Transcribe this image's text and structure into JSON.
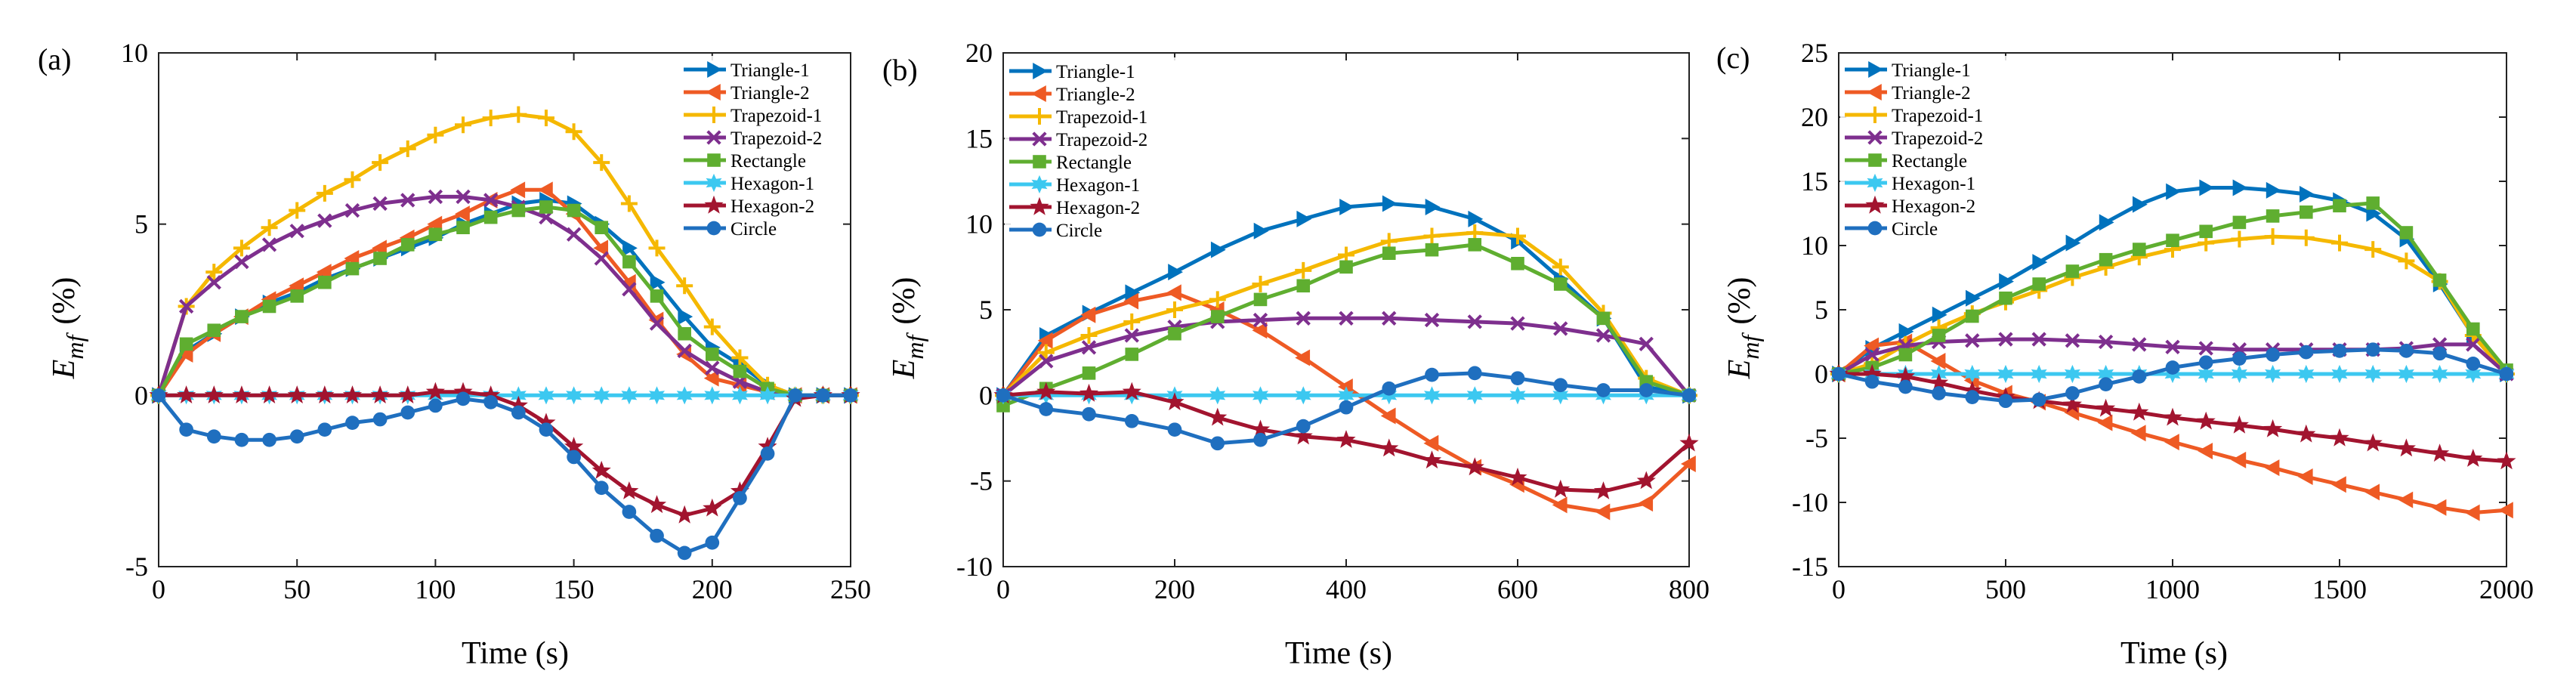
{
  "colors": {
    "Triangle-1": "#0072BD",
    "Triangle-2": "#EE5A24",
    "Trapezoid-1": "#F5B800",
    "Trapezoid-2": "#7E2F8E",
    "Rectangle": "#5FAE30",
    "Hexagon-1": "#3CC8F0",
    "Hexagon-2": "#A2142F",
    "Circle": "#1F6FBF"
  },
  "markers": {
    "Triangle-1": "triangle-right",
    "Triangle-2": "triangle-left",
    "Trapezoid-1": "plus",
    "Trapezoid-2": "x-mark",
    "Rectangle": "square",
    "Hexagon-1": "hexagram",
    "Hexagon-2": "pentagram",
    "Circle": "circle"
  },
  "chart_data": [
    {
      "type": "line",
      "panel_label": "(a)",
      "xlabel": "Time (s)",
      "ylabel_main": "E",
      "ylabel_sub": "mf",
      "ylabel_unit": "(%)",
      "xlim": [
        0,
        250
      ],
      "ylim": [
        -5,
        10
      ],
      "xticks": [
        "0",
        "50",
        "100",
        "150",
        "200",
        "250"
      ],
      "yticks": [
        "-5",
        "0",
        "5",
        "10"
      ],
      "legend": [
        "Triangle-1",
        "Triangle-2",
        "Trapezoid-1",
        "Trapezoid-2",
        "Rectangle",
        "Hexagon-1",
        "Hexagon-2",
        "Circle"
      ],
      "x": [
        0,
        10,
        20,
        30,
        40,
        50,
        60,
        70,
        80,
        90,
        100,
        110,
        120,
        130,
        140,
        150,
        160,
        170,
        180,
        190,
        200,
        210,
        220,
        230,
        240,
        250
      ],
      "series": [
        {
          "name": "Triangle-1",
          "values": [
            0,
            1.3,
            1.8,
            2.3,
            2.7,
            3.0,
            3.4,
            3.7,
            4.0,
            4.3,
            4.6,
            5.0,
            5.3,
            5.6,
            5.7,
            5.6,
            5.0,
            4.3,
            3.3,
            2.3,
            1.4,
            0.9,
            0.3,
            0,
            0,
            0
          ]
        },
        {
          "name": "Triangle-2",
          "values": [
            0,
            1.2,
            1.8,
            2.3,
            2.8,
            3.2,
            3.6,
            4.0,
            4.3,
            4.6,
            5.0,
            5.3,
            5.7,
            6.0,
            6.0,
            5.3,
            4.3,
            3.3,
            2.2,
            1.2,
            0.5,
            0.3,
            0.1,
            0,
            0,
            0
          ]
        },
        {
          "name": "Trapezoid-1",
          "values": [
            0,
            2.6,
            3.6,
            4.3,
            4.9,
            5.4,
            5.9,
            6.3,
            6.8,
            7.2,
            7.6,
            7.9,
            8.1,
            8.2,
            8.1,
            7.7,
            6.8,
            5.6,
            4.3,
            3.2,
            2.0,
            1.1,
            0.3,
            0,
            0,
            0
          ]
        },
        {
          "name": "Trapezoid-2",
          "values": [
            0,
            2.6,
            3.3,
            3.9,
            4.4,
            4.8,
            5.1,
            5.4,
            5.6,
            5.7,
            5.8,
            5.8,
            5.7,
            5.5,
            5.2,
            4.7,
            4.0,
            3.1,
            2.1,
            1.3,
            0.8,
            0.4,
            0.1,
            0,
            0,
            0
          ]
        },
        {
          "name": "Rectangle",
          "values": [
            0,
            1.5,
            1.9,
            2.3,
            2.6,
            2.9,
            3.3,
            3.7,
            4.0,
            4.4,
            4.7,
            4.9,
            5.2,
            5.4,
            5.5,
            5.4,
            4.9,
            3.9,
            2.9,
            1.8,
            1.2,
            0.7,
            0.2,
            0,
            0,
            0
          ]
        },
        {
          "name": "Hexagon-1",
          "values": [
            0,
            0,
            0,
            0,
            0,
            0,
            0,
            0,
            0,
            0,
            0,
            0,
            0,
            0,
            0,
            0,
            0,
            0,
            0,
            0,
            0,
            0,
            0,
            0,
            0,
            0
          ]
        },
        {
          "name": "Hexagon-2",
          "values": [
            0,
            0,
            0,
            0,
            0,
            0,
            0,
            0,
            0,
            0,
            0.1,
            0.1,
            0,
            -0.3,
            -0.8,
            -1.5,
            -2.2,
            -2.8,
            -3.2,
            -3.5,
            -3.3,
            -2.8,
            -1.5,
            -0.1,
            0,
            0
          ]
        },
        {
          "name": "Circle",
          "values": [
            0,
            -1.0,
            -1.2,
            -1.3,
            -1.3,
            -1.2,
            -1.0,
            -0.8,
            -0.7,
            -0.5,
            -0.3,
            -0.1,
            -0.2,
            -0.5,
            -1.0,
            -1.8,
            -2.7,
            -3.4,
            -4.1,
            -4.6,
            -4.3,
            -3.0,
            -1.7,
            0,
            0,
            0
          ]
        }
      ]
    },
    {
      "type": "line",
      "panel_label": "(b)",
      "xlabel": "Time (s)",
      "ylabel_main": "E",
      "ylabel_sub": "mf",
      "ylabel_unit": "(%)",
      "xlim": [
        0,
        800
      ],
      "ylim": [
        -10,
        20
      ],
      "xticks": [
        "0",
        "200",
        "400",
        "600",
        "800"
      ],
      "yticks": [
        "-10",
        "-5",
        "0",
        "5",
        "10",
        "15",
        "20"
      ],
      "legend": [
        "Triangle-1",
        "Triangle-2",
        "Trapezoid-1",
        "Trapezoid-2",
        "Rectangle",
        "Hexagon-1",
        "Hexagon-2",
        "Circle"
      ],
      "x": [
        0,
        50,
        100,
        150,
        200,
        250,
        300,
        350,
        400,
        450,
        500,
        550,
        600,
        650,
        700,
        750,
        800
      ],
      "series": [
        {
          "name": "Triangle-1",
          "values": [
            0,
            3.5,
            4.8,
            6.0,
            7.2,
            8.5,
            9.6,
            10.3,
            11.0,
            11.2,
            11.0,
            10.3,
            9.0,
            6.8,
            4.5,
            0.5,
            0
          ]
        },
        {
          "name": "Triangle-2",
          "values": [
            0,
            3.2,
            4.7,
            5.5,
            6.0,
            5.0,
            3.8,
            2.2,
            0.5,
            -1.2,
            -2.8,
            -4.2,
            -5.2,
            -6.4,
            -6.8,
            -6.3,
            -4.0
          ]
        },
        {
          "name": "Trapezoid-1",
          "values": [
            0,
            2.5,
            3.5,
            4.3,
            5.0,
            5.6,
            6.5,
            7.3,
            8.2,
            9.0,
            9.3,
            9.5,
            9.3,
            7.5,
            4.8,
            1.0,
            0
          ]
        },
        {
          "name": "Trapezoid-2",
          "values": [
            0,
            2.0,
            2.8,
            3.5,
            4.0,
            4.3,
            4.4,
            4.5,
            4.5,
            4.5,
            4.4,
            4.3,
            4.2,
            3.9,
            3.5,
            3.0,
            0
          ]
        },
        {
          "name": "Rectangle",
          "values": [
            -0.6,
            0.4,
            1.3,
            2.4,
            3.6,
            4.6,
            5.6,
            6.4,
            7.5,
            8.3,
            8.5,
            8.8,
            7.7,
            6.5,
            4.5,
            0.8,
            0
          ]
        },
        {
          "name": "Hexagon-1",
          "values": [
            0,
            0,
            0,
            0,
            0,
            0,
            0,
            0,
            0,
            0,
            0,
            0,
            0,
            0,
            0,
            0,
            0
          ]
        },
        {
          "name": "Hexagon-2",
          "values": [
            0,
            0.2,
            0.1,
            0.2,
            -0.4,
            -1.3,
            -2.0,
            -2.4,
            -2.6,
            -3.1,
            -3.8,
            -4.2,
            -4.8,
            -5.5,
            -5.6,
            -5.0,
            -2.8
          ]
        },
        {
          "name": "Circle",
          "values": [
            0,
            -0.8,
            -1.1,
            -1.5,
            -2.0,
            -2.8,
            -2.6,
            -1.8,
            -0.7,
            0.4,
            1.2,
            1.3,
            1.0,
            0.6,
            0.3,
            0.3,
            0
          ]
        }
      ]
    },
    {
      "type": "line",
      "panel_label": "(c)",
      "xlabel": "Time (s)",
      "ylabel_main": "E",
      "ylabel_sub": "mf",
      "ylabel_unit": "(%)",
      "xlim": [
        0,
        2000
      ],
      "ylim": [
        -15,
        25
      ],
      "xticks": [
        "0",
        "500",
        "1000",
        "1500",
        "2000"
      ],
      "yticks": [
        "-15",
        "-10",
        "-5",
        "0",
        "5",
        "10",
        "15",
        "20",
        "25"
      ],
      "legend": [
        "Triangle-1",
        "Triangle-2",
        "Trapezoid-1",
        "Trapezoid-2",
        "Rectangle",
        "Hexagon-1",
        "Hexagon-2",
        "Circle"
      ],
      "x": [
        0,
        100,
        200,
        300,
        400,
        500,
        600,
        700,
        800,
        900,
        1000,
        1100,
        1200,
        1300,
        1400,
        1500,
        1600,
        1700,
        1800,
        1900,
        2000
      ],
      "series": [
        {
          "name": "Triangle-1",
          "values": [
            0,
            2.0,
            3.3,
            4.6,
            5.9,
            7.2,
            8.7,
            10.2,
            11.8,
            13.2,
            14.2,
            14.5,
            14.5,
            14.3,
            14.0,
            13.5,
            12.5,
            10.5,
            7.0,
            3.0,
            0
          ]
        },
        {
          "name": "Triangle-2",
          "values": [
            0,
            2.2,
            2.5,
            1.0,
            -0.5,
            -1.5,
            -2.2,
            -3.0,
            -3.8,
            -4.6,
            -5.3,
            -6.0,
            -6.7,
            -7.3,
            -8.0,
            -8.6,
            -9.2,
            -9.8,
            -10.4,
            -10.8,
            -10.6
          ]
        },
        {
          "name": "Trapezoid-1",
          "values": [
            0,
            0.8,
            2.3,
            3.6,
            4.7,
            5.6,
            6.5,
            7.5,
            8.3,
            9.1,
            9.7,
            10.2,
            10.5,
            10.7,
            10.6,
            10.2,
            9.7,
            8.8,
            7.2,
            3.0,
            0
          ]
        },
        {
          "name": "Trapezoid-2",
          "values": [
            0,
            1.5,
            2.2,
            2.5,
            2.6,
            2.7,
            2.7,
            2.6,
            2.5,
            2.3,
            2.1,
            2.0,
            1.9,
            1.9,
            1.9,
            1.9,
            1.9,
            2.0,
            2.3,
            2.3,
            0
          ]
        },
        {
          "name": "Rectangle",
          "values": [
            0,
            0.5,
            1.5,
            3.0,
            4.5,
            5.9,
            7.0,
            8.0,
            8.9,
            9.7,
            10.4,
            11.1,
            11.8,
            12.3,
            12.6,
            13.1,
            13.3,
            11.0,
            7.3,
            3.5,
            0.3
          ]
        },
        {
          "name": "Hexagon-1",
          "values": [
            0,
            0,
            0,
            0,
            0,
            0,
            0,
            0,
            0,
            0,
            0,
            0,
            0,
            0,
            0,
            0,
            0,
            0,
            0,
            0,
            0
          ]
        },
        {
          "name": "Hexagon-2",
          "values": [
            0,
            0,
            -0.2,
            -0.7,
            -1.3,
            -1.8,
            -2.1,
            -2.4,
            -2.7,
            -3.0,
            -3.4,
            -3.7,
            -4.0,
            -4.3,
            -4.7,
            -5.0,
            -5.4,
            -5.8,
            -6.2,
            -6.6,
            -6.8
          ]
        },
        {
          "name": "Circle",
          "values": [
            0,
            -0.6,
            -1.0,
            -1.5,
            -1.8,
            -2.1,
            -2.0,
            -1.5,
            -0.8,
            -0.2,
            0.5,
            0.9,
            1.2,
            1.5,
            1.7,
            1.8,
            1.9,
            1.8,
            1.6,
            0.8,
            0
          ]
        }
      ]
    }
  ]
}
